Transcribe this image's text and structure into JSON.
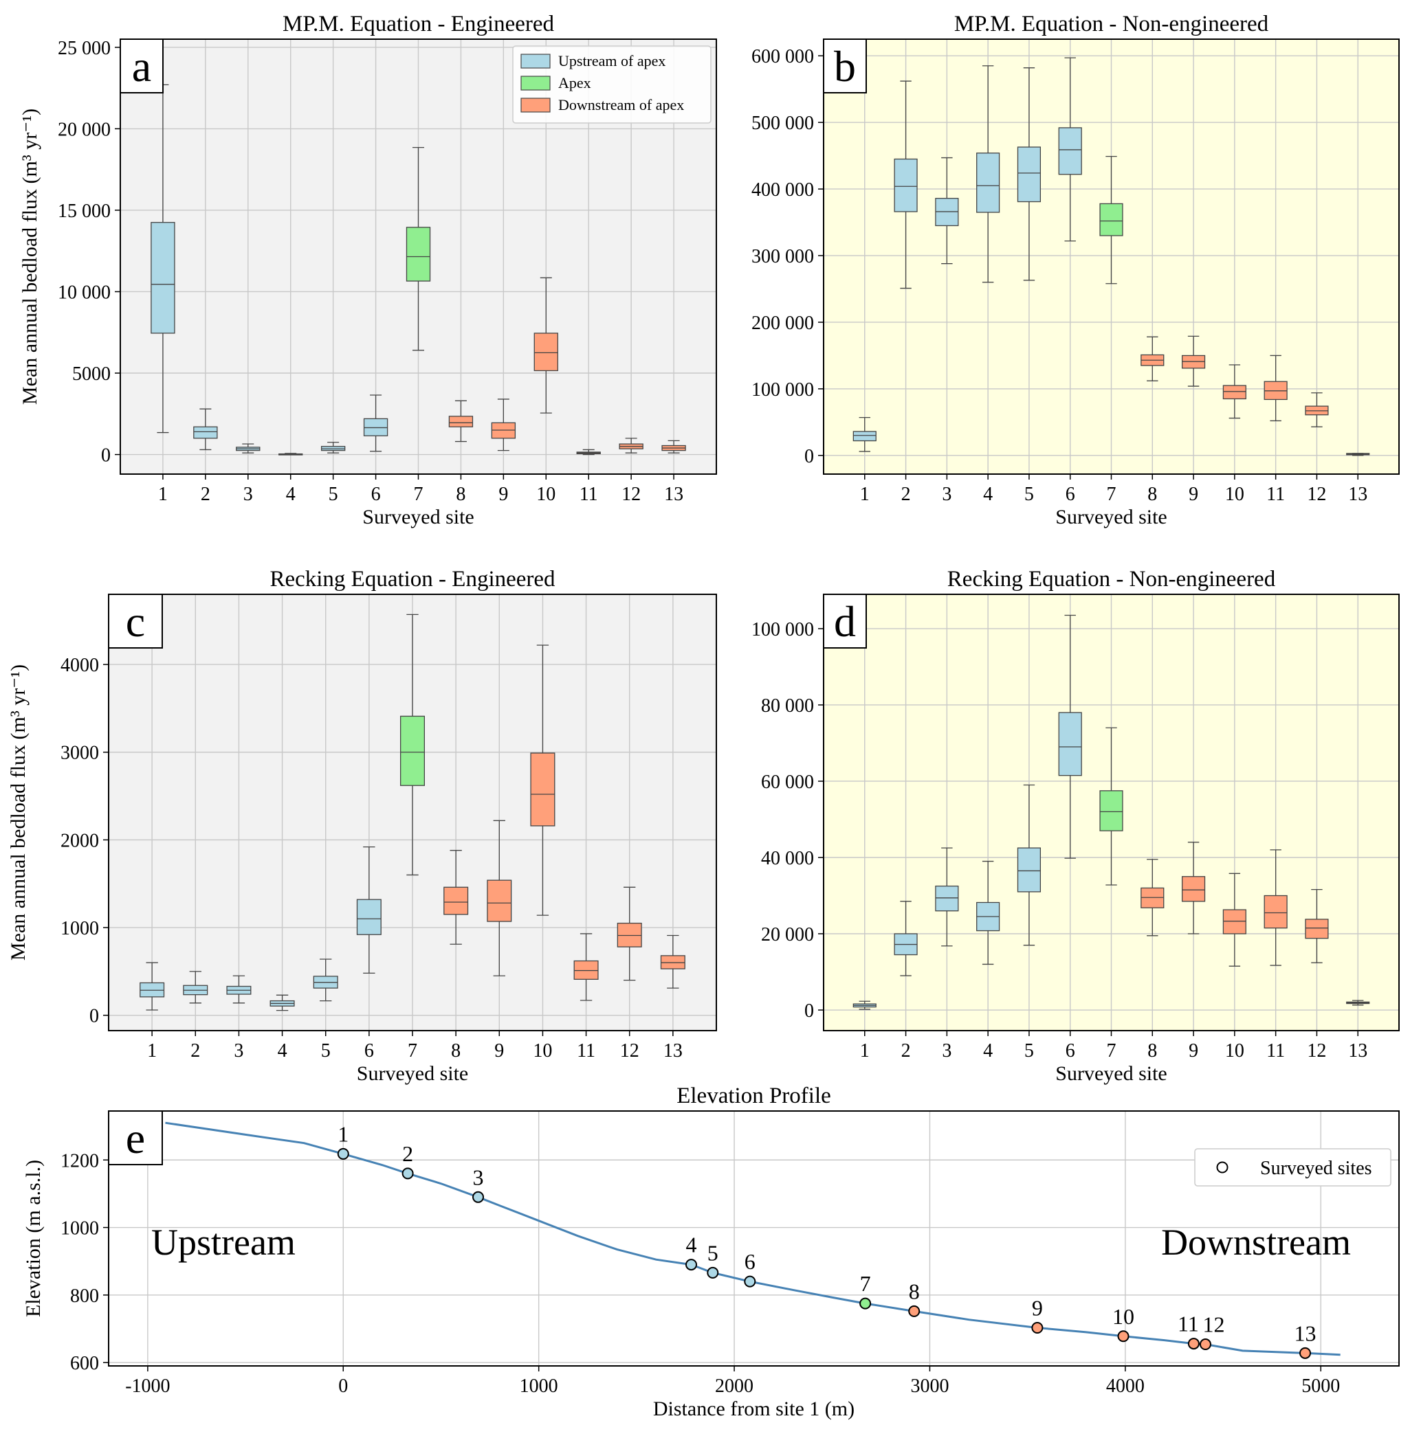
{
  "colors": {
    "upstream": "#add8e6",
    "apex": "#90ee90",
    "downstream": "#ffa07a",
    "bg_engineered": "#f2f2f2",
    "bg_non_engineered": "#ffffe0",
    "profile_line": "#4682b4",
    "grid": "#c8c8c8"
  },
  "chart_data": [
    {
      "panel": "a",
      "type": "box",
      "title": "MP.M. Equation - Engineered",
      "xlabel": "Surveyed site",
      "ylabel": "Mean annual bedload flux (m³ yr⁻¹)",
      "ylim": [
        -1200,
        25500
      ],
      "yticks": [
        0,
        5000,
        10000,
        15000,
        20000,
        25000
      ],
      "ytick_labels": [
        "0",
        "5000",
        "10 000",
        "15 000",
        "20 000",
        "25 000"
      ],
      "categories": [
        "1",
        "2",
        "3",
        "4",
        "5",
        "6",
        "7",
        "8",
        "9",
        "10",
        "11",
        "12",
        "13"
      ],
      "groups": [
        "upstream",
        "upstream",
        "upstream",
        "upstream",
        "upstream",
        "upstream",
        "apex",
        "downstream",
        "downstream",
        "downstream",
        "downstream",
        "downstream",
        "downstream"
      ],
      "background": "engineered",
      "legend": {
        "position": "top-right",
        "entries": [
          "Upstream of apex",
          "Apex",
          "Downstream of apex"
        ]
      },
      "boxes": [
        {
          "min": 1350,
          "q1": 7450,
          "median": 10450,
          "q3": 14250,
          "max": 22700
        },
        {
          "min": 300,
          "q1": 1000,
          "median": 1400,
          "q3": 1700,
          "max": 2800
        },
        {
          "min": 100,
          "q1": 250,
          "median": 350,
          "q3": 450,
          "max": 650
        },
        {
          "min": 0,
          "q1": 10,
          "median": 20,
          "q3": 40,
          "max": 70
        },
        {
          "min": 100,
          "q1": 250,
          "median": 350,
          "q3": 500,
          "max": 750
        },
        {
          "min": 200,
          "q1": 1150,
          "median": 1650,
          "q3": 2200,
          "max": 3650
        },
        {
          "min": 6400,
          "q1": 10650,
          "median": 12150,
          "q3": 13950,
          "max": 18850
        },
        {
          "min": 800,
          "q1": 1700,
          "median": 1950,
          "q3": 2350,
          "max": 3300
        },
        {
          "min": 250,
          "q1": 1000,
          "median": 1500,
          "q3": 1950,
          "max": 3400
        },
        {
          "min": 2550,
          "q1": 5150,
          "median": 6250,
          "q3": 7450,
          "max": 10850
        },
        {
          "min": 0,
          "q1": 50,
          "median": 100,
          "q3": 150,
          "max": 300
        },
        {
          "min": 100,
          "q1": 350,
          "median": 500,
          "q3": 650,
          "max": 1000
        },
        {
          "min": 100,
          "q1": 250,
          "median": 400,
          "q3": 550,
          "max": 850
        }
      ]
    },
    {
      "panel": "b",
      "type": "box",
      "title": "MP.M. Equation - Non-engineered",
      "xlabel": "Surveyed site",
      "ylabel": "",
      "ylim": [
        -28000,
        625000
      ],
      "yticks": [
        0,
        100000,
        200000,
        300000,
        400000,
        500000,
        600000
      ],
      "ytick_labels": [
        "0",
        "100 000",
        "200 000",
        "300 000",
        "400 000",
        "500 000",
        "600 000"
      ],
      "categories": [
        "1",
        "2",
        "3",
        "4",
        "5",
        "6",
        "7",
        "8",
        "9",
        "10",
        "11",
        "12",
        "13"
      ],
      "groups": [
        "upstream",
        "upstream",
        "upstream",
        "upstream",
        "upstream",
        "upstream",
        "apex",
        "downstream",
        "downstream",
        "downstream",
        "downstream",
        "downstream",
        "downstream"
      ],
      "background": "non_engineered",
      "boxes": [
        {
          "min": 6000,
          "q1": 22000,
          "median": 30000,
          "q3": 36000,
          "max": 57000
        },
        {
          "min": 251000,
          "q1": 366000,
          "median": 404000,
          "q3": 445000,
          "max": 562000
        },
        {
          "min": 288000,
          "q1": 345000,
          "median": 366000,
          "q3": 386000,
          "max": 447000
        },
        {
          "min": 260000,
          "q1": 365000,
          "median": 405000,
          "q3": 454000,
          "max": 585000
        },
        {
          "min": 263000,
          "q1": 381000,
          "median": 424000,
          "q3": 463000,
          "max": 582000
        },
        {
          "min": 322000,
          "q1": 422000,
          "median": 459000,
          "q3": 492000,
          "max": 597000
        },
        {
          "min": 258000,
          "q1": 330000,
          "median": 352000,
          "q3": 378000,
          "max": 449000
        },
        {
          "min": 112000,
          "q1": 135000,
          "median": 143000,
          "q3": 151000,
          "max": 178000
        },
        {
          "min": 104000,
          "q1": 131000,
          "median": 141000,
          "q3": 150000,
          "max": 179000
        },
        {
          "min": 56000,
          "q1": 85000,
          "median": 96000,
          "q3": 105000,
          "max": 136000
        },
        {
          "min": 52000,
          "q1": 84000,
          "median": 97000,
          "q3": 111000,
          "max": 150000
        },
        {
          "min": 43000,
          "q1": 61000,
          "median": 67000,
          "q3": 74000,
          "max": 94000
        },
        {
          "min": 0,
          "q1": 1000,
          "median": 2000,
          "q3": 3000,
          "max": 3000
        }
      ]
    },
    {
      "panel": "c",
      "type": "box",
      "title": "Recking Equation - Engineered",
      "xlabel": "Surveyed site",
      "ylabel": "Mean annual bedload flux (m³ yr⁻¹)",
      "ylim": [
        -175,
        4800
      ],
      "yticks": [
        0,
        1000,
        2000,
        3000,
        4000
      ],
      "ytick_labels": [
        "0",
        "1000",
        "2000",
        "3000",
        "4000"
      ],
      "categories": [
        "1",
        "2",
        "3",
        "4",
        "5",
        "6",
        "7",
        "8",
        "9",
        "10",
        "11",
        "12",
        "13"
      ],
      "groups": [
        "upstream",
        "upstream",
        "upstream",
        "upstream",
        "upstream",
        "upstream",
        "apex",
        "downstream",
        "downstream",
        "downstream",
        "downstream",
        "downstream",
        "downstream"
      ],
      "background": "engineered",
      "boxes": [
        {
          "min": 60,
          "q1": 210,
          "median": 285,
          "q3": 370,
          "max": 600
        },
        {
          "min": 140,
          "q1": 235,
          "median": 285,
          "q3": 340,
          "max": 500
        },
        {
          "min": 140,
          "q1": 240,
          "median": 285,
          "q3": 330,
          "max": 450
        },
        {
          "min": 55,
          "q1": 105,
          "median": 135,
          "q3": 165,
          "max": 230
        },
        {
          "min": 165,
          "q1": 310,
          "median": 375,
          "q3": 445,
          "max": 640
        },
        {
          "min": 480,
          "q1": 920,
          "median": 1100,
          "q3": 1320,
          "max": 1920
        },
        {
          "min": 1600,
          "q1": 2620,
          "median": 3000,
          "q3": 3410,
          "max": 4570
        },
        {
          "min": 810,
          "q1": 1150,
          "median": 1290,
          "q3": 1460,
          "max": 1880
        },
        {
          "min": 450,
          "q1": 1070,
          "median": 1280,
          "q3": 1540,
          "max": 2220
        },
        {
          "min": 1140,
          "q1": 2160,
          "median": 2520,
          "q3": 2990,
          "max": 4220
        },
        {
          "min": 170,
          "q1": 410,
          "median": 510,
          "q3": 620,
          "max": 930
        },
        {
          "min": 400,
          "q1": 780,
          "median": 910,
          "q3": 1050,
          "max": 1460
        },
        {
          "min": 310,
          "q1": 530,
          "median": 600,
          "q3": 680,
          "max": 910
        }
      ]
    },
    {
      "panel": "d",
      "type": "box",
      "title": "Recking Equation - Non-engineered",
      "xlabel": "Surveyed site",
      "ylabel": "",
      "ylim": [
        -5400,
        109000
      ],
      "yticks": [
        0,
        20000,
        40000,
        60000,
        80000,
        100000
      ],
      "ytick_labels": [
        "0",
        "20 000",
        "40 000",
        "60 000",
        "80 000",
        "100 000"
      ],
      "categories": [
        "1",
        "2",
        "3",
        "4",
        "5",
        "6",
        "7",
        "8",
        "9",
        "10",
        "11",
        "12",
        "13"
      ],
      "groups": [
        "upstream",
        "upstream",
        "upstream",
        "upstream",
        "upstream",
        "upstream",
        "apex",
        "downstream",
        "downstream",
        "downstream",
        "downstream",
        "downstream",
        "downstream"
      ],
      "background": "non_engineered",
      "boxes": [
        {
          "min": 200,
          "q1": 800,
          "median": 1200,
          "q3": 1600,
          "max": 2300
        },
        {
          "min": 9000,
          "q1": 14500,
          "median": 17200,
          "q3": 20000,
          "max": 28500
        },
        {
          "min": 16800,
          "q1": 26000,
          "median": 29400,
          "q3": 32500,
          "max": 42500
        },
        {
          "min": 12000,
          "q1": 20800,
          "median": 24500,
          "q3": 28200,
          "max": 39000
        },
        {
          "min": 17000,
          "q1": 31000,
          "median": 36500,
          "q3": 42500,
          "max": 59000
        },
        {
          "min": 39800,
          "q1": 61500,
          "median": 69000,
          "q3": 78000,
          "max": 103500
        },
        {
          "min": 32800,
          "q1": 47000,
          "median": 52000,
          "q3": 57500,
          "max": 74000
        },
        {
          "min": 19500,
          "q1": 26800,
          "median": 29500,
          "q3": 32000,
          "max": 39500
        },
        {
          "min": 20000,
          "q1": 28500,
          "median": 31500,
          "q3": 35000,
          "max": 44000
        },
        {
          "min": 11500,
          "q1": 20000,
          "median": 23300,
          "q3": 26300,
          "max": 35800
        },
        {
          "min": 11700,
          "q1": 21500,
          "median": 25500,
          "q3": 30000,
          "max": 42000
        },
        {
          "min": 12400,
          "q1": 18800,
          "median": 21500,
          "q3": 23800,
          "max": 31600
        },
        {
          "min": 1300,
          "q1": 1700,
          "median": 1900,
          "q3": 2100,
          "max": 2500
        }
      ]
    },
    {
      "panel": "e",
      "type": "line",
      "title": "Elevation Profile",
      "xlabel": "Distance from site 1 (m)",
      "ylabel": "Elevation (m a.s.l.)",
      "xlim": [
        -1200,
        5400
      ],
      "ylim": [
        590,
        1345
      ],
      "xticks": [
        -1000,
        0,
        1000,
        2000,
        3000,
        4000,
        5000
      ],
      "yticks": [
        600,
        800,
        1000,
        1200
      ],
      "legend": {
        "position": "top-right",
        "entries": [
          "Surveyed sites"
        ]
      },
      "annotations": [
        "Upstream",
        "Downstream"
      ],
      "profile": {
        "x": [
          -910,
          -500,
          -200,
          0,
          200,
          330,
          500,
          690,
          800,
          1000,
          1200,
          1400,
          1600,
          1780,
          1890,
          2080,
          2300,
          2500,
          2670,
          2920,
          3200,
          3550,
          3800,
          3990,
          4200,
          4350,
          4410,
          4600,
          4920,
          5100
        ],
        "y": [
          1310,
          1275,
          1250,
          1218,
          1185,
          1160,
          1130,
          1090,
          1065,
          1020,
          975,
          935,
          905,
          890,
          866,
          840,
          815,
          793,
          775,
          752,
          727,
          703,
          690,
          678,
          666,
          656,
          654,
          635,
          628,
          623
        ]
      },
      "sites": [
        {
          "label": "1",
          "x": 0,
          "y": 1218,
          "group": "upstream"
        },
        {
          "label": "2",
          "x": 330,
          "y": 1160,
          "group": "upstream"
        },
        {
          "label": "3",
          "x": 690,
          "y": 1090,
          "group": "upstream"
        },
        {
          "label": "4",
          "x": 1780,
          "y": 890,
          "group": "upstream"
        },
        {
          "label": "5",
          "x": 1890,
          "y": 866,
          "group": "upstream"
        },
        {
          "label": "6",
          "x": 2080,
          "y": 840,
          "group": "upstream"
        },
        {
          "label": "7",
          "x": 2670,
          "y": 775,
          "group": "apex"
        },
        {
          "label": "8",
          "x": 2920,
          "y": 752,
          "group": "downstream"
        },
        {
          "label": "9",
          "x": 3550,
          "y": 703,
          "group": "downstream"
        },
        {
          "label": "10",
          "x": 3990,
          "y": 678,
          "group": "downstream"
        },
        {
          "label": "11",
          "x": 4350,
          "y": 656,
          "group": "downstream"
        },
        {
          "label": "12",
          "x": 4410,
          "y": 654,
          "group": "downstream"
        },
        {
          "label": "13",
          "x": 4920,
          "y": 628,
          "group": "downstream"
        }
      ]
    }
  ]
}
